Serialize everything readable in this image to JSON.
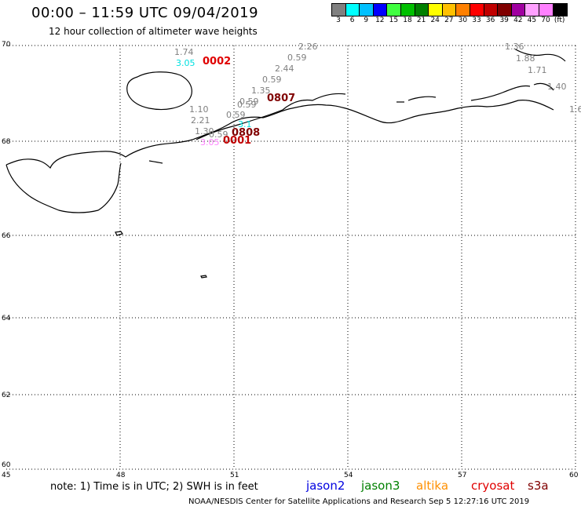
{
  "header": {
    "title": "00:00 – 11:59 UTC 09/04/2019",
    "subtitle": "12 hour collection of altimeter wave heights"
  },
  "colorbar": {
    "colors": [
      "#808080",
      "#00ffff",
      "#00c0ff",
      "#0000ff",
      "#40ff40",
      "#00c000",
      "#008000",
      "#ffff00",
      "#ffc000",
      "#ff8000",
      "#ff0000",
      "#c00000",
      "#800000",
      "#a000a0",
      "#ffa0ff",
      "#ff80ff",
      "#000000"
    ],
    "labels": [
      "3",
      "6",
      "9",
      "12",
      "15",
      "18",
      "21",
      "24",
      "27",
      "30",
      "33",
      "36",
      "39",
      "42",
      "45",
      "70",
      "(ft)"
    ]
  },
  "axes": {
    "lat_labels": [
      "70",
      "68",
      "66",
      "64",
      "62",
      "60"
    ],
    "lon_labels": [
      "45",
      "48",
      "51",
      "54",
      "57",
      "60"
    ]
  },
  "observations": [
    {
      "text": "1.74",
      "color": "#808080"
    },
    {
      "text": "3.05",
      "color": "#00e0e0"
    },
    {
      "text": "2.26",
      "color": "#808080"
    },
    {
      "text": "0.59",
      "color": "#808080"
    },
    {
      "text": "2.44",
      "color": "#808080"
    },
    {
      "text": "0.59",
      "color": "#808080"
    },
    {
      "text": "1.35",
      "color": "#808080"
    },
    {
      "text": "0.59",
      "color": "#808080"
    },
    {
      "text": "0.59",
      "color": "#808080"
    },
    {
      "text": "1.10",
      "color": "#808080"
    },
    {
      "text": "0.59",
      "color": "#808080"
    },
    {
      "text": "2.21",
      "color": "#808080"
    },
    {
      "text": "3.1",
      "color": "#00e0e0"
    },
    {
      "text": "1.30",
      "color": "#808080"
    },
    {
      "text": "0.59",
      "color": "#808080"
    },
    {
      "text": "3.05",
      "color": "#ff80ff"
    },
    {
      "text": "1.36",
      "color": "#808080"
    },
    {
      "text": "1.88",
      "color": "#808080"
    },
    {
      "text": "1.71",
      "color": "#808080"
    },
    {
      "text": "1.40",
      "color": "#808080"
    },
    {
      "text": "1.6",
      "color": "#808080"
    }
  ],
  "passes": [
    {
      "text": "0002",
      "color": "#e00000"
    },
    {
      "text": "0807",
      "color": "#800000"
    },
    {
      "text": "0808",
      "color": "#800000"
    },
    {
      "text": "0001",
      "color": "#c00000"
    }
  ],
  "footer": {
    "note": "note:  1) Time is in UTC;  2) SWH is in feet",
    "legend": [
      {
        "text": "jason2",
        "color": "#0000e0"
      },
      {
        "text": "jason3",
        "color": "#008000"
      },
      {
        "text": "altika",
        "color": "#ff9000"
      },
      {
        "text": "cryosat",
        "color": "#e00000"
      },
      {
        "text": "s3a",
        "color": "#800000"
      }
    ],
    "credit": "NOAA/NESDIS Center for Satellite Applications and Research     Sep  5 12:27:16 UTC 2019"
  }
}
